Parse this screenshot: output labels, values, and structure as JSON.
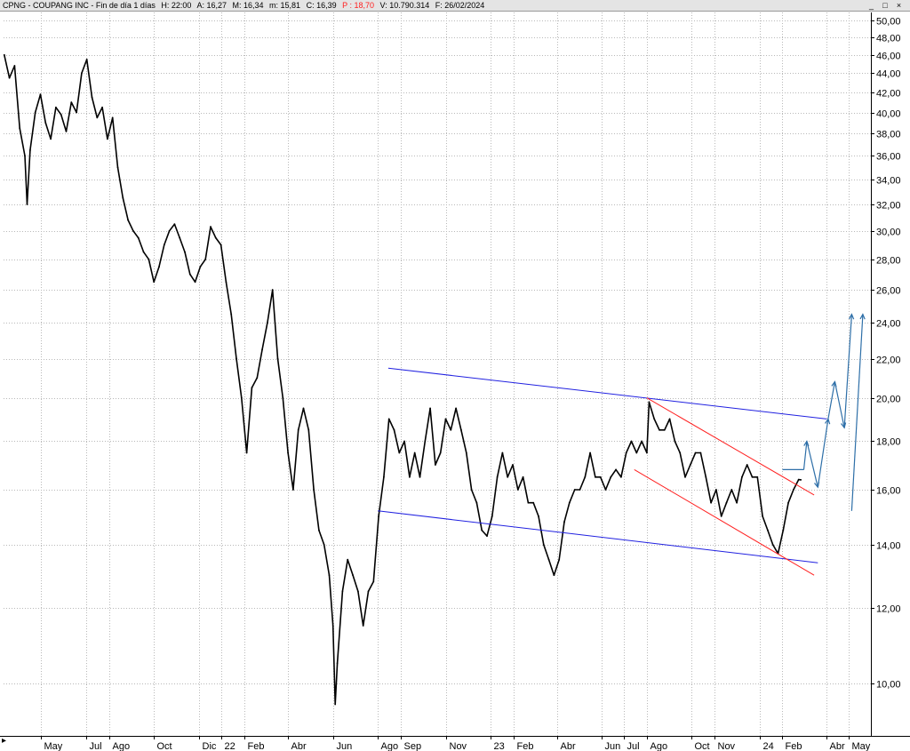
{
  "header": {
    "title": "CPNG - COUPANG INC - Fin de día 1 días",
    "high_label": "H: 22:00",
    "open_label": "A: 16,27",
    "max_label": "M: 16,34",
    "min_label": "m: 15,81",
    "close_label": "C: 16,39",
    "last_label": "P : 18,70",
    "volume_label": "V: 10.790.314",
    "date_label": "F: 26/02/2024",
    "window_controls": [
      "_",
      "□",
      "×"
    ]
  },
  "colors": {
    "background": "#ffffff",
    "grid": "#b8b8b8",
    "price": "#000000",
    "channel_blue": "#2020e0",
    "channel_red": "#ff2020",
    "projection": "#2e6fa8",
    "close_value": "#ff2020"
  },
  "chart_data": {
    "type": "line",
    "title": "CPNG - COUPANG INC",
    "xlabel": "",
    "ylabel": "",
    "y_scale": "log",
    "ylim": [
      8.8,
      51
    ],
    "x_range": [
      "2021-03-11",
      "2024-05-31"
    ],
    "grid": true,
    "y_axis_position": "right",
    "y_ticks": [
      "50,00",
      "48,00",
      "46,00",
      "44,00",
      "42,00",
      "40,00",
      "38,00",
      "36,00",
      "34,00",
      "32,00",
      "30,00",
      "28,00",
      "26,00",
      "24,00",
      "22,00",
      "20,00",
      "18,00",
      "16,00",
      "14,00",
      "12,00",
      "10,00"
    ],
    "y_tick_values": [
      50,
      48,
      46,
      44,
      42,
      40,
      38,
      36,
      34,
      32,
      30,
      28,
      26,
      24,
      22,
      20,
      18,
      16,
      14,
      12,
      10
    ],
    "x_ticks": [
      {
        "label": "May",
        "date": "2021-05-01"
      },
      {
        "label": "Jul",
        "date": "2021-07-01"
      },
      {
        "label": "Ago",
        "date": "2021-08-01"
      },
      {
        "label": "Oct",
        "date": "2021-10-01"
      },
      {
        "label": "Dic",
        "date": "2021-12-01"
      },
      {
        "label": "22",
        "date": "2022-01-01"
      },
      {
        "label": "Feb",
        "date": "2022-02-01"
      },
      {
        "label": "Abr",
        "date": "2022-04-01"
      },
      {
        "label": "Jun",
        "date": "2022-06-01"
      },
      {
        "label": "Ago",
        "date": "2022-08-01"
      },
      {
        "label": "Sep",
        "date": "2022-09-01"
      },
      {
        "label": "Nov",
        "date": "2022-11-01"
      },
      {
        "label": "23",
        "date": "2023-01-01"
      },
      {
        "label": "Feb",
        "date": "2023-02-01"
      },
      {
        "label": "Abr",
        "date": "2023-04-01"
      },
      {
        "label": "Jun",
        "date": "2023-06-01"
      },
      {
        "label": "Jul",
        "date": "2023-07-01"
      },
      {
        "label": "Ago",
        "date": "2023-08-01"
      },
      {
        "label": "Oct",
        "date": "2023-10-01"
      },
      {
        "label": "Nov",
        "date": "2023-11-01"
      },
      {
        "label": "24",
        "date": "2024-01-01"
      },
      {
        "label": "Feb",
        "date": "2024-02-01"
      },
      {
        "label": "Abr",
        "date": "2024-04-01"
      },
      {
        "label": "May",
        "date": "2024-05-01"
      }
    ],
    "series": [
      {
        "points": [
          [
            "2021-03-12",
            46.0
          ],
          [
            "2021-03-19",
            43.5
          ],
          [
            "2021-03-26",
            44.8
          ],
          [
            "2021-04-02",
            38.5
          ],
          [
            "2021-04-09",
            36.0
          ],
          [
            "2021-04-12",
            32.0
          ],
          [
            "2021-04-16",
            36.5
          ],
          [
            "2021-04-23",
            40.0
          ],
          [
            "2021-04-30",
            41.8
          ],
          [
            "2021-05-07",
            39.0
          ],
          [
            "2021-05-14",
            37.5
          ],
          [
            "2021-05-21",
            40.5
          ],
          [
            "2021-05-28",
            39.8
          ],
          [
            "2021-06-04",
            38.2
          ],
          [
            "2021-06-11",
            41.0
          ],
          [
            "2021-06-18",
            40.0
          ],
          [
            "2021-06-25",
            44.0
          ],
          [
            "2021-07-02",
            45.5
          ],
          [
            "2021-07-09",
            41.5
          ],
          [
            "2021-07-16",
            39.5
          ],
          [
            "2021-07-23",
            40.5
          ],
          [
            "2021-07-30",
            37.5
          ],
          [
            "2021-08-06",
            39.5
          ],
          [
            "2021-08-13",
            35.0
          ],
          [
            "2021-08-20",
            32.5
          ],
          [
            "2021-08-27",
            30.8
          ],
          [
            "2021-09-03",
            30.0
          ],
          [
            "2021-09-10",
            29.5
          ],
          [
            "2021-09-17",
            28.5
          ],
          [
            "2021-09-24",
            28.0
          ],
          [
            "2021-10-01",
            26.5
          ],
          [
            "2021-10-08",
            27.5
          ],
          [
            "2021-10-15",
            29.0
          ],
          [
            "2021-10-22",
            30.0
          ],
          [
            "2021-10-29",
            30.5
          ],
          [
            "2021-11-05",
            29.5
          ],
          [
            "2021-11-12",
            28.5
          ],
          [
            "2021-11-19",
            27.0
          ],
          [
            "2021-11-26",
            26.5
          ],
          [
            "2021-12-03",
            27.5
          ],
          [
            "2021-12-10",
            28.0
          ],
          [
            "2021-12-17",
            30.3
          ],
          [
            "2021-12-24",
            29.5
          ],
          [
            "2021-12-31",
            29.0
          ],
          [
            "2022-01-07",
            26.5
          ],
          [
            "2022-01-14",
            24.5
          ],
          [
            "2022-01-21",
            22.0
          ],
          [
            "2022-01-28",
            20.0
          ],
          [
            "2022-02-04",
            17.5
          ],
          [
            "2022-02-11",
            20.5
          ],
          [
            "2022-02-18",
            21.0
          ],
          [
            "2022-02-25",
            22.5
          ],
          [
            "2022-03-04",
            24.0
          ],
          [
            "2022-03-11",
            26.0
          ],
          [
            "2022-03-18",
            22.0
          ],
          [
            "2022-03-25",
            20.0
          ],
          [
            "2022-04-01",
            17.5
          ],
          [
            "2022-04-08",
            16.0
          ],
          [
            "2022-04-15",
            18.5
          ],
          [
            "2022-04-22",
            19.5
          ],
          [
            "2022-04-29",
            18.5
          ],
          [
            "2022-05-06",
            16.0
          ],
          [
            "2022-05-13",
            14.5
          ],
          [
            "2022-05-20",
            14.0
          ],
          [
            "2022-05-27",
            13.0
          ],
          [
            "2022-06-01",
            11.5
          ],
          [
            "2022-06-04",
            9.5
          ],
          [
            "2022-06-07",
            10.5
          ],
          [
            "2022-06-14",
            12.5
          ],
          [
            "2022-06-21",
            13.5
          ],
          [
            "2022-06-28",
            13.0
          ],
          [
            "2022-07-05",
            12.5
          ],
          [
            "2022-07-12",
            11.5
          ],
          [
            "2022-07-19",
            12.5
          ],
          [
            "2022-07-26",
            12.8
          ],
          [
            "2022-08-02",
            15.0
          ],
          [
            "2022-08-09",
            16.5
          ],
          [
            "2022-08-16",
            19.0
          ],
          [
            "2022-08-23",
            18.5
          ],
          [
            "2022-08-30",
            17.5
          ],
          [
            "2022-09-06",
            18.0
          ],
          [
            "2022-09-13",
            16.5
          ],
          [
            "2022-09-20",
            17.5
          ],
          [
            "2022-09-27",
            16.5
          ],
          [
            "2022-10-04",
            18.0
          ],
          [
            "2022-10-11",
            19.5
          ],
          [
            "2022-10-18",
            17.0
          ],
          [
            "2022-10-25",
            17.5
          ],
          [
            "2022-11-01",
            19.0
          ],
          [
            "2022-11-08",
            18.5
          ],
          [
            "2022-11-15",
            19.5
          ],
          [
            "2022-11-22",
            18.5
          ],
          [
            "2022-11-29",
            17.5
          ],
          [
            "2022-12-06",
            16.0
          ],
          [
            "2022-12-13",
            15.5
          ],
          [
            "2022-12-20",
            14.5
          ],
          [
            "2022-12-27",
            14.3
          ],
          [
            "2023-01-03",
            15.0
          ],
          [
            "2023-01-10",
            16.5
          ],
          [
            "2023-01-17",
            17.5
          ],
          [
            "2023-01-24",
            16.5
          ],
          [
            "2023-01-31",
            17.0
          ],
          [
            "2023-02-07",
            16.0
          ],
          [
            "2023-02-14",
            16.5
          ],
          [
            "2023-02-21",
            15.5
          ],
          [
            "2023-02-28",
            15.5
          ],
          [
            "2023-03-07",
            15.0
          ],
          [
            "2023-03-14",
            14.0
          ],
          [
            "2023-03-21",
            13.5
          ],
          [
            "2023-03-28",
            13.0
          ],
          [
            "2023-04-04",
            13.5
          ],
          [
            "2023-04-11",
            14.8
          ],
          [
            "2023-04-18",
            15.5
          ],
          [
            "2023-04-25",
            16.0
          ],
          [
            "2023-05-02",
            16.0
          ],
          [
            "2023-05-09",
            16.5
          ],
          [
            "2023-05-16",
            17.5
          ],
          [
            "2023-05-23",
            16.5
          ],
          [
            "2023-05-30",
            16.5
          ],
          [
            "2023-06-06",
            16.0
          ],
          [
            "2023-06-13",
            16.5
          ],
          [
            "2023-06-20",
            16.8
          ],
          [
            "2023-06-27",
            16.5
          ],
          [
            "2023-07-04",
            17.5
          ],
          [
            "2023-07-11",
            18.0
          ],
          [
            "2023-07-18",
            17.5
          ],
          [
            "2023-07-25",
            18.0
          ],
          [
            "2023-08-01",
            17.5
          ],
          [
            "2023-08-04",
            19.8
          ],
          [
            "2023-08-11",
            19.0
          ],
          [
            "2023-08-18",
            18.5
          ],
          [
            "2023-08-25",
            18.5
          ],
          [
            "2023-09-01",
            19.0
          ],
          [
            "2023-09-08",
            18.0
          ],
          [
            "2023-09-15",
            17.5
          ],
          [
            "2023-09-22",
            16.5
          ],
          [
            "2023-09-29",
            17.0
          ],
          [
            "2023-10-06",
            17.5
          ],
          [
            "2023-10-13",
            17.5
          ],
          [
            "2023-10-20",
            16.5
          ],
          [
            "2023-10-27",
            15.5
          ],
          [
            "2023-11-03",
            16.0
          ],
          [
            "2023-11-10",
            15.0
          ],
          [
            "2023-11-17",
            15.5
          ],
          [
            "2023-11-24",
            16.0
          ],
          [
            "2023-12-01",
            15.5
          ],
          [
            "2023-12-08",
            16.5
          ],
          [
            "2023-12-15",
            17.0
          ],
          [
            "2023-12-22",
            16.5
          ],
          [
            "2023-12-29",
            16.5
          ],
          [
            "2024-01-05",
            15.0
          ],
          [
            "2024-01-12",
            14.5
          ],
          [
            "2024-01-19",
            14.0
          ],
          [
            "2024-01-26",
            13.7
          ],
          [
            "2024-02-02",
            14.5
          ],
          [
            "2024-02-09",
            15.5
          ],
          [
            "2024-02-16",
            16.0
          ],
          [
            "2024-02-23",
            16.4
          ],
          [
            "2024-02-26",
            16.39
          ]
        ]
      }
    ],
    "lines": [
      {
        "color": "blue",
        "start": [
          "2022-08-15",
          21.5
        ],
        "end": [
          "2024-04-01",
          19.0
        ]
      },
      {
        "color": "blue",
        "start": [
          "2022-08-01",
          15.2
        ],
        "end": [
          "2024-03-20",
          13.4
        ]
      },
      {
        "color": "red",
        "start": [
          "2023-08-01",
          20.0
        ],
        "end": [
          "2024-03-15",
          15.8
        ]
      },
      {
        "color": "red",
        "start": [
          "2023-07-15",
          16.8
        ],
        "end": [
          "2024-03-15",
          13.0
        ]
      }
    ],
    "projection": [
      [
        "2024-02-01",
        16.8
      ],
      [
        "2024-03-01",
        16.8
      ],
      [
        "2024-03-05",
        18.0
      ],
      [
        "2024-03-20",
        16.1
      ],
      [
        "2024-04-03",
        19.0
      ],
      [
        "2024-04-12",
        20.8
      ],
      [
        "2024-04-25",
        18.6
      ],
      [
        "2024-05-05",
        24.5
      ],
      [
        "2024-05-05",
        15.2
      ],
      [
        "2024-05-20",
        24.5
      ]
    ]
  }
}
